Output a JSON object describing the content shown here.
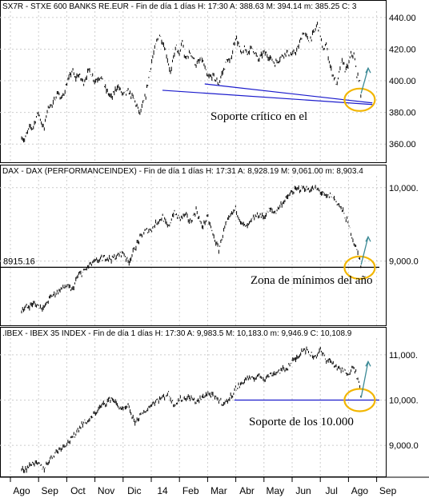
{
  "colors": {
    "price": "#000000",
    "support": "#1a1acc",
    "highlight": "#f2b600",
    "arrow": "#3c8a96",
    "grid": "#cccccc",
    "frame": "#000000"
  },
  "x_axis": {
    "months": [
      "Ago",
      "Sep",
      "Oct",
      "Nov",
      "Dic",
      "14",
      "Feb",
      "Mar",
      "Abr",
      "May",
      "Jun",
      "Jul",
      "Ago",
      "Sep"
    ]
  },
  "chart_data": [
    {
      "type": "line",
      "header": "SX7R - STXE 600 BANKS RE.EUR - Fin de día 1 días  H: 17:30  A: 388.63  M: 394.14  m: 385.25  C: 3",
      "yticks": [
        "440.00",
        "420.00",
        "400.00",
        "380.00",
        "360.00"
      ],
      "ylim": [
        350,
        445
      ],
      "grid": true,
      "annotation": "Soporte crítico en el",
      "support_line": {
        "label": "",
        "from": {
          "month": 5.0,
          "value": 394
        },
        "to": {
          "month": 12.45,
          "value": 385
        }
      },
      "support_line_2": {
        "from": {
          "month": 6.5,
          "value": 398
        },
        "to": {
          "month": 12.45,
          "value": 386
        }
      },
      "highlight": {
        "month": 12.0,
        "value": 388
      },
      "arrow": {
        "from": {
          "month": 12.05,
          "value": 392
        },
        "to": {
          "month": 12.3,
          "value": 408
        }
      },
      "series": [
        {
          "x": [
            0.0,
            0.1,
            0.2,
            0.3,
            0.4,
            0.5,
            0.6,
            0.7,
            0.8,
            0.9,
            1.0,
            1.1,
            1.2,
            1.3,
            1.4,
            1.5,
            1.6,
            1.7,
            1.8,
            1.9,
            2.0,
            2.2,
            2.4,
            2.6,
            2.8,
            3.0,
            3.2,
            3.4,
            3.6,
            3.8,
            4.0,
            4.2,
            4.4,
            4.6,
            4.8,
            4.9,
            5.0,
            5.1,
            5.2,
            5.3,
            5.4,
            5.5,
            5.6,
            5.7,
            5.8,
            5.9,
            6.0,
            6.2,
            6.4,
            6.6,
            6.8,
            7.0,
            7.1,
            7.2,
            7.3,
            7.4,
            7.5,
            7.6,
            7.7,
            7.8,
            7.9,
            8.0,
            8.2,
            8.4,
            8.6,
            8.8,
            9.0,
            9.2,
            9.4,
            9.6,
            9.8,
            10.0,
            10.2,
            10.4,
            10.5,
            10.6,
            10.7,
            10.8,
            10.9,
            11.0,
            11.1,
            11.2,
            11.3,
            11.4,
            11.5,
            11.6,
            11.7,
            11.8,
            11.9,
            12.0,
            12.05
          ],
          "y": [
            365,
            362,
            367,
            371,
            370,
            376,
            380,
            374,
            369,
            381,
            385,
            384,
            390,
            393,
            388,
            392,
            398,
            402,
            407,
            401,
            404,
            399,
            407,
            400,
            403,
            394,
            389,
            397,
            391,
            393,
            388,
            379,
            390,
            411,
            425,
            429,
            425,
            420,
            412,
            404,
            416,
            422,
            415,
            426,
            413,
            416,
            418,
            410,
            414,
            402,
            403,
            398,
            404,
            408,
            414,
            411,
            420,
            428,
            423,
            416,
            420,
            418,
            421,
            413,
            418,
            415,
            411,
            415,
            418,
            416,
            420,
            431,
            425,
            431,
            436,
            430,
            418,
            424,
            414,
            406,
            402,
            397,
            408,
            413,
            406,
            410,
            417,
            416,
            404,
            400,
            388
          ]
        }
      ]
    },
    {
      "type": "line",
      "header": "DAX - DAX (PERFORMANCEINDEX) - Fin de día 1 días  H: 17:31  A: 8,928.19  M: 9,061.00  m: 8,903.4",
      "yticks": [
        "10,000.",
        "9,000.0"
      ],
      "ylim": [
        8200,
        10150
      ],
      "grid": true,
      "annotation": "Zona de mínimos del año",
      "support_line": {
        "label": "8915.16",
        "from": {
          "month": 0.0,
          "value": 8915.16
        },
        "to": {
          "month": 12.7,
          "value": 8915.16
        }
      },
      "highlight": {
        "month": 12.0,
        "value": 8910
      },
      "arrow": {
        "from": {
          "month": 12.05,
          "value": 8950
        },
        "to": {
          "month": 12.3,
          "value": 9330
        }
      },
      "series": [
        {
          "x": [
            0.0,
            0.2,
            0.4,
            0.6,
            0.8,
            1.0,
            1.2,
            1.4,
            1.6,
            1.8,
            2.0,
            2.2,
            2.4,
            2.6,
            2.8,
            3.0,
            3.2,
            3.4,
            3.6,
            3.8,
            4.0,
            4.2,
            4.4,
            4.6,
            4.8,
            5.0,
            5.2,
            5.4,
            5.6,
            5.8,
            6.0,
            6.2,
            6.4,
            6.6,
            6.8,
            7.0,
            7.2,
            7.4,
            7.6,
            7.8,
            8.0,
            8.2,
            8.4,
            8.6,
            8.8,
            9.0,
            9.2,
            9.4,
            9.6,
            9.8,
            10.0,
            10.2,
            10.4,
            10.6,
            10.8,
            11.0,
            11.2,
            11.4,
            11.6,
            11.8,
            12.0,
            12.05
          ],
          "y": [
            8340,
            8370,
            8420,
            8390,
            8360,
            8500,
            8560,
            8620,
            8660,
            8600,
            8800,
            8850,
            8940,
            8990,
            9020,
            9050,
            9030,
            9070,
            9120,
            8980,
            9160,
            9310,
            9410,
            9430,
            9530,
            9600,
            9450,
            9660,
            9580,
            9630,
            9530,
            9700,
            9460,
            9600,
            9350,
            9150,
            9450,
            9600,
            9720,
            9510,
            9460,
            9570,
            9630,
            9600,
            9700,
            9660,
            9770,
            9850,
            9940,
            9980,
            10000,
            9970,
            9990,
            9950,
            9870,
            9900,
            9800,
            9680,
            9500,
            9250,
            9040,
            8910
          ]
        }
      ]
    },
    {
      "type": "line",
      "header": ".IBEX - IBEX 35 INDEX - Fin de día 1 días  H: 17:30  A: 9,983.5  M: 10,183.0  m: 9,946.9  C: 10,108.9",
      "yticks": [
        "11,000.",
        "10,000.",
        "9,000.0"
      ],
      "ylim": [
        8350,
        11350
      ],
      "grid": true,
      "annotation": "Soporte de los 10.000",
      "support_line": {
        "label": "",
        "from": {
          "month": 7.55,
          "value": 10000
        },
        "to": {
          "month": 12.7,
          "value": 10000
        }
      },
      "highlight": {
        "month": 12.0,
        "value": 10000
      },
      "arrow": {
        "from": {
          "month": 12.05,
          "value": 10050
        },
        "to": {
          "month": 12.3,
          "value": 10850
        }
      },
      "series": [
        {
          "x": [
            0.0,
            0.2,
            0.4,
            0.6,
            0.8,
            1.0,
            1.2,
            1.4,
            1.6,
            1.8,
            2.0,
            2.2,
            2.4,
            2.6,
            2.8,
            3.0,
            3.2,
            3.4,
            3.6,
            3.8,
            4.0,
            4.2,
            4.4,
            4.6,
            4.8,
            5.0,
            5.2,
            5.4,
            5.6,
            5.8,
            6.0,
            6.2,
            6.4,
            6.6,
            6.8,
            7.0,
            7.2,
            7.4,
            7.6,
            7.8,
            8.0,
            8.2,
            8.4,
            8.6,
            8.8,
            9.0,
            9.2,
            9.4,
            9.6,
            9.8,
            10.0,
            10.2,
            10.4,
            10.6,
            10.8,
            11.0,
            11.2,
            11.4,
            11.6,
            11.8,
            12.0,
            12.05
          ],
          "y": [
            8450,
            8500,
            8620,
            8580,
            8480,
            8700,
            8840,
            8950,
            9050,
            9150,
            9350,
            9500,
            9550,
            9700,
            9850,
            9950,
            10050,
            9880,
            9780,
            9850,
            9500,
            9650,
            9750,
            9900,
            10000,
            10050,
            10150,
            9900,
            10000,
            10050,
            10050,
            9950,
            10050,
            10150,
            10080,
            10000,
            9920,
            10050,
            10250,
            10350,
            10500,
            10450,
            10550,
            10480,
            10550,
            10600,
            10650,
            10700,
            10850,
            10950,
            11150,
            11050,
            10950,
            11100,
            10900,
            10850,
            10700,
            10650,
            10600,
            10750,
            10300,
            10000
          ]
        }
      ]
    }
  ]
}
